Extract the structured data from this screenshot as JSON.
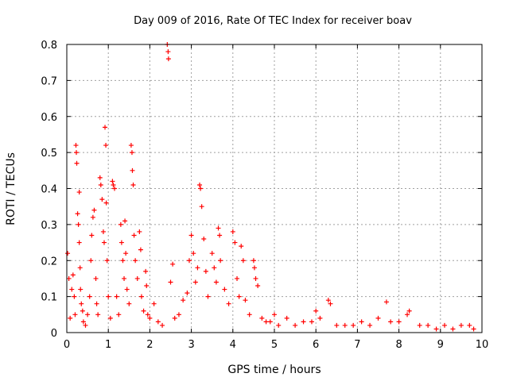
{
  "chart_data": {
    "type": "scatter",
    "title": "Day 009 of 2016, Rate Of TEC Index for receiver boav",
    "xlabel": "GPS time / hours",
    "ylabel": "ROTI / TECUs",
    "xlim": [
      0,
      10
    ],
    "ylim": [
      0,
      0.8
    ],
    "xticks": [
      "0",
      "1",
      "2",
      "3",
      "4",
      "5",
      "6",
      "7",
      "8",
      "9",
      "10"
    ],
    "yticks": [
      "0",
      "0.1",
      "0.2",
      "0.3",
      "0.4",
      "0.5",
      "0.6",
      "0.7",
      "0.8"
    ],
    "grid": true,
    "marker": "+",
    "series": [
      {
        "name": "ROTI",
        "color": "#ff0000",
        "points": [
          [
            0.02,
            0.22
          ],
          [
            0.05,
            0.15
          ],
          [
            0.08,
            0.04
          ],
          [
            0.12,
            0.12
          ],
          [
            0.15,
            0.16
          ],
          [
            0.18,
            0.1
          ],
          [
            0.2,
            0.05
          ],
          [
            0.22,
            0.52
          ],
          [
            0.23,
            0.5
          ],
          [
            0.24,
            0.47
          ],
          [
            0.26,
            0.33
          ],
          [
            0.28,
            0.3
          ],
          [
            0.3,
            0.39
          ],
          [
            0.3,
            0.25
          ],
          [
            0.32,
            0.18
          ],
          [
            0.33,
            0.12
          ],
          [
            0.35,
            0.08
          ],
          [
            0.38,
            0.06
          ],
          [
            0.4,
            0.03
          ],
          [
            0.45,
            0.02
          ],
          [
            0.5,
            0.05
          ],
          [
            0.55,
            0.1
          ],
          [
            0.58,
            0.2
          ],
          [
            0.6,
            0.27
          ],
          [
            0.63,
            0.32
          ],
          [
            0.66,
            0.34
          ],
          [
            0.7,
            0.15
          ],
          [
            0.72,
            0.08
          ],
          [
            0.75,
            0.05
          ],
          [
            0.8,
            0.43
          ],
          [
            0.82,
            0.41
          ],
          [
            0.85,
            0.37
          ],
          [
            0.88,
            0.28
          ],
          [
            0.9,
            0.25
          ],
          [
            0.92,
            0.57
          ],
          [
            0.94,
            0.52
          ],
          [
            0.95,
            0.36
          ],
          [
            0.97,
            0.2
          ],
          [
            1.0,
            0.1
          ],
          [
            1.05,
            0.04
          ],
          [
            1.1,
            0.42
          ],
          [
            1.12,
            0.41
          ],
          [
            1.15,
            0.4
          ],
          [
            1.2,
            0.1
          ],
          [
            1.25,
            0.05
          ],
          [
            1.3,
            0.3
          ],
          [
            1.32,
            0.25
          ],
          [
            1.35,
            0.2
          ],
          [
            1.38,
            0.15
          ],
          [
            1.4,
            0.31
          ],
          [
            1.42,
            0.22
          ],
          [
            1.45,
            0.12
          ],
          [
            1.5,
            0.08
          ],
          [
            1.55,
            0.52
          ],
          [
            1.57,
            0.5
          ],
          [
            1.58,
            0.45
          ],
          [
            1.6,
            0.41
          ],
          [
            1.62,
            0.27
          ],
          [
            1.65,
            0.2
          ],
          [
            1.7,
            0.15
          ],
          [
            1.75,
            0.28
          ],
          [
            1.78,
            0.23
          ],
          [
            1.8,
            0.1
          ],
          [
            1.85,
            0.06
          ],
          [
            1.9,
            0.17
          ],
          [
            1.92,
            0.13
          ],
          [
            1.95,
            0.05
          ],
          [
            2.0,
            0.04
          ],
          [
            2.1,
            0.08
          ],
          [
            2.2,
            0.03
          ],
          [
            2.3,
            0.02
          ],
          [
            2.42,
            0.8
          ],
          [
            2.44,
            0.78
          ],
          [
            2.45,
            0.76
          ],
          [
            2.5,
            0.14
          ],
          [
            2.55,
            0.19
          ],
          [
            2.6,
            0.04
          ],
          [
            2.7,
            0.05
          ],
          [
            2.8,
            0.09
          ],
          [
            2.9,
            0.11
          ],
          [
            2.95,
            0.2
          ],
          [
            3.0,
            0.27
          ],
          [
            3.05,
            0.22
          ],
          [
            3.1,
            0.14
          ],
          [
            3.15,
            0.18
          ],
          [
            3.2,
            0.41
          ],
          [
            3.22,
            0.4
          ],
          [
            3.25,
            0.35
          ],
          [
            3.3,
            0.26
          ],
          [
            3.35,
            0.17
          ],
          [
            3.4,
            0.1
          ],
          [
            3.5,
            0.22
          ],
          [
            3.55,
            0.18
          ],
          [
            3.6,
            0.14
          ],
          [
            3.65,
            0.29
          ],
          [
            3.68,
            0.27
          ],
          [
            3.7,
            0.2
          ],
          [
            3.8,
            0.12
          ],
          [
            3.9,
            0.08
          ],
          [
            4.0,
            0.28
          ],
          [
            4.05,
            0.25
          ],
          [
            4.1,
            0.15
          ],
          [
            4.15,
            0.1
          ],
          [
            4.2,
            0.24
          ],
          [
            4.25,
            0.2
          ],
          [
            4.3,
            0.09
          ],
          [
            4.4,
            0.05
          ],
          [
            4.5,
            0.2
          ],
          [
            4.52,
            0.18
          ],
          [
            4.55,
            0.15
          ],
          [
            4.6,
            0.13
          ],
          [
            4.7,
            0.04
          ],
          [
            4.8,
            0.03
          ],
          [
            4.9,
            0.03
          ],
          [
            5.0,
            0.05
          ],
          [
            5.1,
            0.02
          ],
          [
            5.3,
            0.04
          ],
          [
            5.5,
            0.02
          ],
          [
            5.7,
            0.03
          ],
          [
            5.9,
            0.03
          ],
          [
            6.0,
            0.06
          ],
          [
            6.1,
            0.04
          ],
          [
            6.3,
            0.09
          ],
          [
            6.35,
            0.08
          ],
          [
            6.5,
            0.02
          ],
          [
            6.7,
            0.02
          ],
          [
            6.9,
            0.02
          ],
          [
            7.1,
            0.03
          ],
          [
            7.3,
            0.02
          ],
          [
            7.5,
            0.04
          ],
          [
            7.7,
            0.085
          ],
          [
            7.8,
            0.03
          ],
          [
            8.0,
            0.03
          ],
          [
            8.2,
            0.05
          ],
          [
            8.25,
            0.06
          ],
          [
            8.5,
            0.02
          ],
          [
            8.7,
            0.02
          ],
          [
            8.9,
            0.01
          ],
          [
            9.1,
            0.02
          ],
          [
            9.3,
            0.01
          ],
          [
            9.5,
            0.02
          ],
          [
            9.7,
            0.02
          ],
          [
            9.8,
            0.01
          ]
        ]
      }
    ]
  }
}
